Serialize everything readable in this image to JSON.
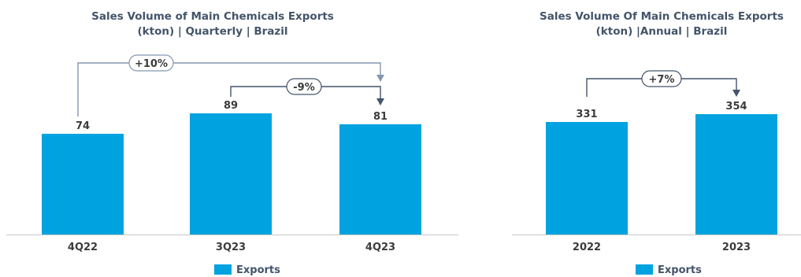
{
  "chart_data": [
    {
      "type": "bar",
      "title": "Sales Volume of Main Chemicals Exports",
      "subtitle": "(kton) | Quarterly | Brazil",
      "categories": [
        "4Q22",
        "3Q23",
        "4Q23"
      ],
      "series": [
        {
          "name": "Exports",
          "values": [
            74,
            89,
            81
          ],
          "color": "#00a3e0"
        }
      ],
      "value_labels": [
        "74",
        "89",
        "81"
      ],
      "ylim": [
        0,
        100
      ],
      "grid": false,
      "legend": "bottom-center",
      "annotations": [
        {
          "label": "+10%",
          "from": "4Q22",
          "to": "4Q23",
          "style": "light"
        },
        {
          "label": "-9%",
          "from": "3Q23",
          "to": "4Q23",
          "style": "dark"
        }
      ]
    },
    {
      "type": "bar",
      "title": "Sales Volume Of Main Chemicals Exports",
      "subtitle": "(kton) |Annual | Brazil",
      "categories": [
        "2022",
        "2023"
      ],
      "series": [
        {
          "name": "Exports",
          "values": [
            331,
            354
          ],
          "color": "#00a3e0"
        }
      ],
      "value_labels": [
        "331",
        "354"
      ],
      "ylim": [
        0,
        400
      ],
      "grid": false,
      "legend": "bottom-center",
      "annotations": [
        {
          "label": "+7%",
          "from": "2022",
          "to": "2023",
          "style": "dark"
        }
      ]
    }
  ]
}
